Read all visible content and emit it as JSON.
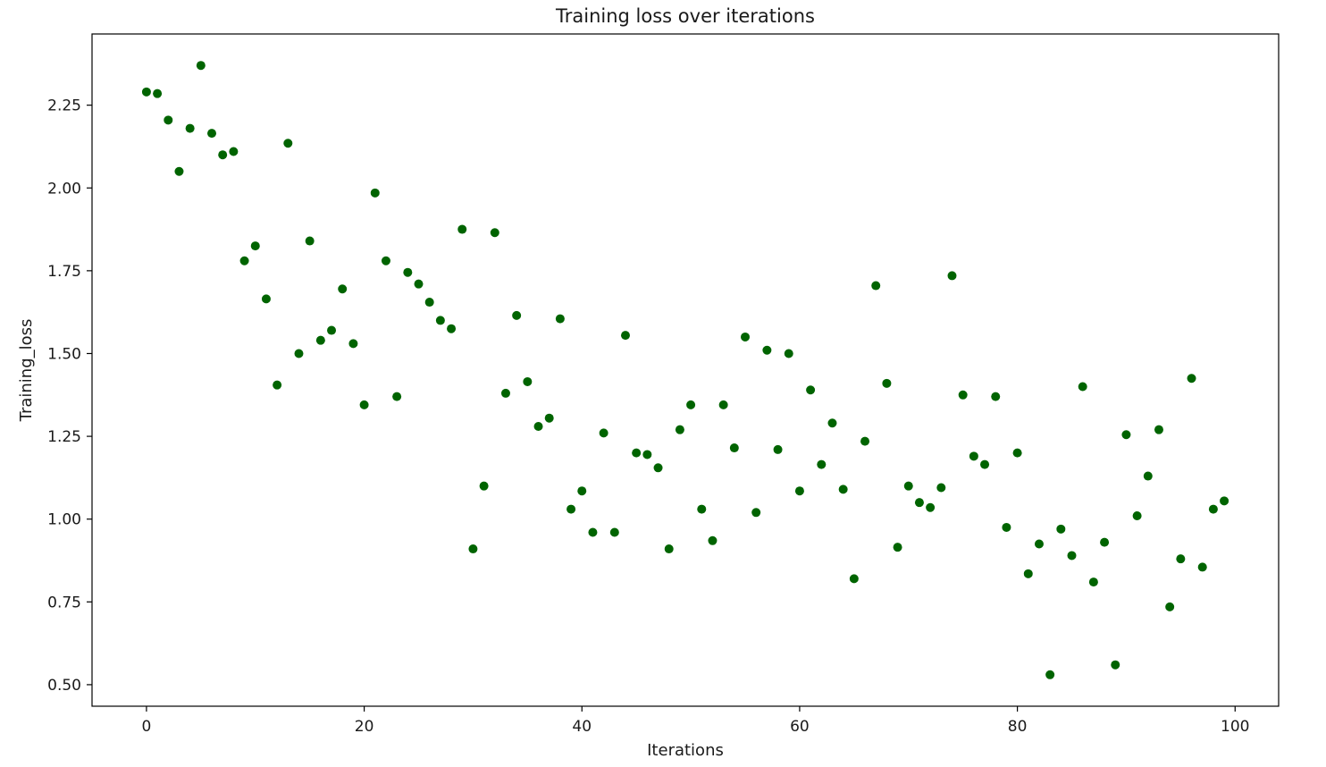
{
  "chart_data": {
    "type": "scatter",
    "title": "Training loss over iterations",
    "xlabel": "Iterations",
    "ylabel": "Training_loss",
    "xlim": [
      -5,
      104
    ],
    "ylim": [
      0.435,
      2.465
    ],
    "xticks": [
      0,
      20,
      40,
      60,
      80,
      100
    ],
    "yticks": [
      0.5,
      0.75,
      1.0,
      1.25,
      1.5,
      1.75,
      2.0,
      2.25
    ],
    "xtick_labels": [
      "0",
      "20",
      "40",
      "60",
      "80",
      "100"
    ],
    "ytick_labels": [
      "0.50",
      "0.75",
      "1.00",
      "1.25",
      "1.50",
      "1.75",
      "2.00",
      "2.25"
    ],
    "grid": false,
    "marker_color": "#006400",
    "x": [
      0,
      1,
      2,
      3,
      4,
      5,
      6,
      7,
      8,
      9,
      10,
      11,
      12,
      13,
      14,
      15,
      16,
      17,
      18,
      19,
      20,
      21,
      22,
      23,
      24,
      25,
      26,
      27,
      28,
      29,
      30,
      31,
      32,
      33,
      34,
      35,
      36,
      37,
      38,
      39,
      40,
      41,
      42,
      43,
      44,
      45,
      46,
      47,
      48,
      49,
      50,
      51,
      52,
      53,
      54,
      55,
      56,
      57,
      58,
      59,
      60,
      61,
      62,
      63,
      64,
      65,
      66,
      67,
      68,
      69,
      70,
      71,
      72,
      73,
      74,
      75,
      76,
      77,
      78,
      79,
      80,
      81,
      82,
      83,
      84,
      85,
      86,
      87,
      88,
      89,
      90,
      91,
      92,
      93,
      94,
      95,
      96,
      97,
      98,
      99
    ],
    "y": [
      2.29,
      2.285,
      2.205,
      2.05,
      2.18,
      2.37,
      2.165,
      2.1,
      2.11,
      1.78,
      1.825,
      1.665,
      1.405,
      2.135,
      1.5,
      1.84,
      1.54,
      1.57,
      1.695,
      1.53,
      1.345,
      1.985,
      1.78,
      1.37,
      1.745,
      1.71,
      1.655,
      1.6,
      1.575,
      1.875,
      0.91,
      1.1,
      1.865,
      1.38,
      1.615,
      1.415,
      1.28,
      1.305,
      1.605,
      1.03,
      1.085,
      0.96,
      1.26,
      0.96,
      1.555,
      1.2,
      1.195,
      1.155,
      0.91,
      1.27,
      1.345,
      1.03,
      0.935,
      1.345,
      1.215,
      1.55,
      1.02,
      1.51,
      1.21,
      1.5,
      1.085,
      1.39,
      1.165,
      1.29,
      1.09,
      0.82,
      1.235,
      1.705,
      1.41,
      0.915,
      1.1,
      1.05,
      1.035,
      1.095,
      1.735,
      1.375,
      1.19,
      1.165,
      1.37,
      0.975,
      1.2,
      0.835,
      0.925,
      0.53,
      0.97,
      0.89,
      1.4,
      0.81,
      0.93,
      0.56,
      1.255,
      1.01,
      1.13,
      1.27,
      0.735,
      0.88,
      1.425,
      0.855,
      1.03,
      1.055
    ]
  }
}
